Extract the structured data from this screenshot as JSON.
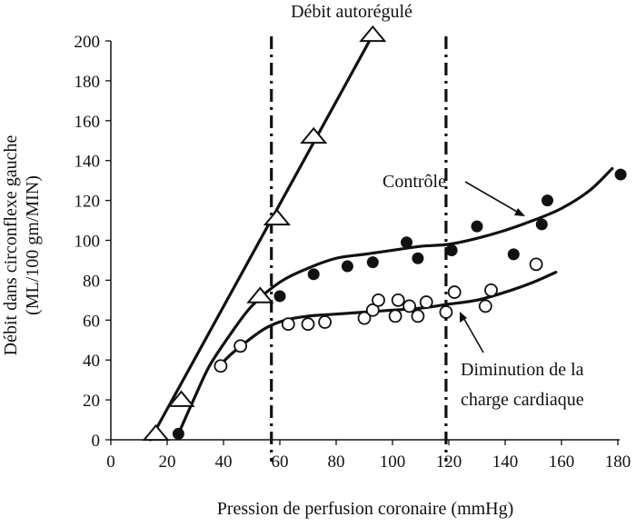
{
  "chart_data": {
    "type": "scatter",
    "title": "",
    "xlabel": "Pression de perfusion coronaire (mmHg)",
    "ylabel_line1": "Débit dans circonflexe gauche",
    "ylabel_line2": "(ML/100 gm/MIN)",
    "xlim": [
      0,
      180
    ],
    "ylim": [
      0,
      200
    ],
    "x_ticks": [
      0,
      20,
      40,
      60,
      80,
      100,
      120,
      140,
      160,
      180
    ],
    "y_ticks": [
      0,
      20,
      40,
      60,
      80,
      100,
      120,
      140,
      160,
      180,
      200
    ],
    "grid": false,
    "legend": "none",
    "annotations": {
      "autoregule": "Débit autorégulé",
      "controle": "Contrôle",
      "diminution_line1": "Diminution de la",
      "diminution_line2": "charge cardiaque"
    },
    "vertical_lines": [
      57,
      119
    ],
    "series": [
      {
        "marker": "open-triangle",
        "points": [
          [
            16,
            3
          ],
          [
            25,
            20
          ],
          [
            53,
            72
          ],
          [
            59,
            111
          ],
          [
            72,
            152
          ],
          [
            93,
            203
          ]
        ],
        "fit": [
          [
            14,
            0
          ],
          [
            93,
            203
          ]
        ]
      },
      {
        "marker": "filled-circle",
        "points": [
          [
            24,
            3
          ],
          [
            60,
            72
          ],
          [
            72,
            83
          ],
          [
            84,
            87
          ],
          [
            93,
            89
          ],
          [
            105,
            99
          ],
          [
            109,
            91
          ],
          [
            121,
            95
          ],
          [
            130,
            107
          ],
          [
            143,
            93
          ],
          [
            153,
            108
          ],
          [
            155,
            120
          ],
          [
            181,
            133
          ]
        ],
        "fit": [
          [
            24,
            3
          ],
          [
            30,
            22
          ],
          [
            35,
            37
          ],
          [
            42,
            52
          ],
          [
            50,
            67
          ],
          [
            60,
            79
          ],
          [
            70,
            86
          ],
          [
            80,
            91
          ],
          [
            90,
            93
          ],
          [
            100,
            95
          ],
          [
            110,
            97
          ],
          [
            120,
            98
          ],
          [
            130,
            101
          ],
          [
            140,
            105
          ],
          [
            150,
            110
          ],
          [
            160,
            116
          ],
          [
            170,
            125
          ],
          [
            178,
            136
          ]
        ]
      },
      {
        "marker": "open-circle",
        "points": [
          [
            39,
            37
          ],
          [
            46,
            47
          ],
          [
            63,
            58
          ],
          [
            70,
            58
          ],
          [
            76,
            59
          ],
          [
            90,
            61
          ],
          [
            93,
            65
          ],
          [
            95,
            70
          ],
          [
            101,
            62
          ],
          [
            102,
            70
          ],
          [
            106,
            67
          ],
          [
            109,
            62
          ],
          [
            112,
            69
          ],
          [
            119,
            64
          ],
          [
            122,
            74
          ],
          [
            133,
            67
          ],
          [
            135,
            75
          ],
          [
            151,
            88
          ]
        ],
        "fit": [
          [
            38,
            36
          ],
          [
            42,
            42
          ],
          [
            48,
            49
          ],
          [
            55,
            56
          ],
          [
            62,
            60
          ],
          [
            70,
            62
          ],
          [
            80,
            63
          ],
          [
            90,
            64
          ],
          [
            100,
            65
          ],
          [
            110,
            66
          ],
          [
            120,
            68
          ],
          [
            130,
            70
          ],
          [
            140,
            74
          ],
          [
            150,
            79
          ],
          [
            158,
            84
          ]
        ]
      }
    ]
  }
}
